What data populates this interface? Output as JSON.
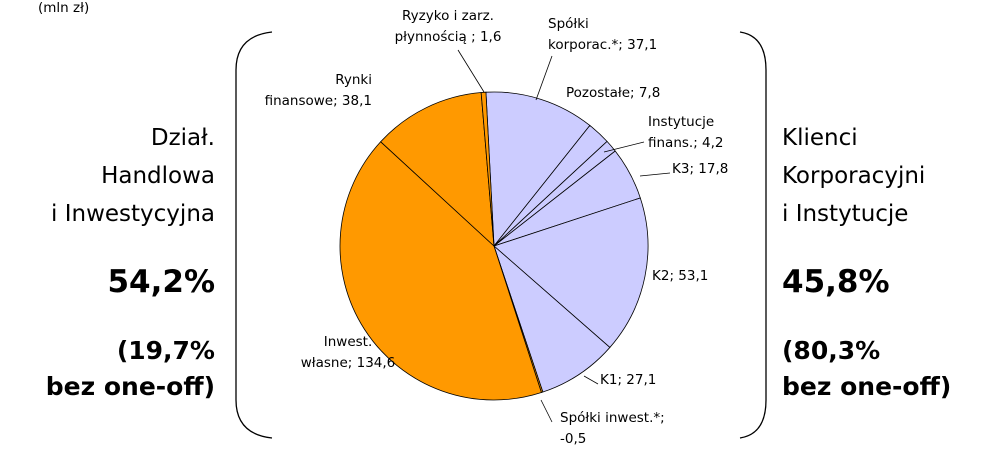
{
  "chart_data": {
    "type": "pie",
    "unit": "(mln zł)",
    "values": [
      37.1,
      7.8,
      4.2,
      17.8,
      53.1,
      27.1,
      -0.5,
      134.6,
      38.1,
      1.6
    ],
    "labels": [
      [
        "Spółki",
        "korporac.*; 37,1"
      ],
      [
        "Pozostałe; 7,8"
      ],
      [
        "Instytucje",
        "finans.; 4,2"
      ],
      [
        "K3; 17,8"
      ],
      [
        "K2; 53,1"
      ],
      [
        "K1; 27,1"
      ],
      [
        "Spółki inwest.*;",
        "-0,5"
      ],
      [
        "Inwest.",
        "własne; 134,6"
      ],
      [
        "Rynki",
        "finansowe; 38,1"
      ],
      [
        "Ryzyko i zarz.",
        "płynnością ; 1,6"
      ]
    ],
    "colors": [
      "#ccccff",
      "#ccccff",
      "#ccccff",
      "#ccccff",
      "#ccccff",
      "#ccccff",
      "#ff9900",
      "#ff9900",
      "#ff9900",
      "#ff9900"
    ],
    "groups": [
      {
        "lines": [
          "Dział.",
          "Handlowa",
          "i Inwestycyjna"
        ],
        "share": "54,2%",
        "note": [
          "(19,7%",
          "bez one-off)"
        ]
      },
      {
        "lines": [
          "Klienci",
          "Korporacyjni",
          "i Instytucje"
        ],
        "share": "45,8%",
        "note": [
          "(80,3%",
          "bez one-off)"
        ]
      }
    ]
  }
}
